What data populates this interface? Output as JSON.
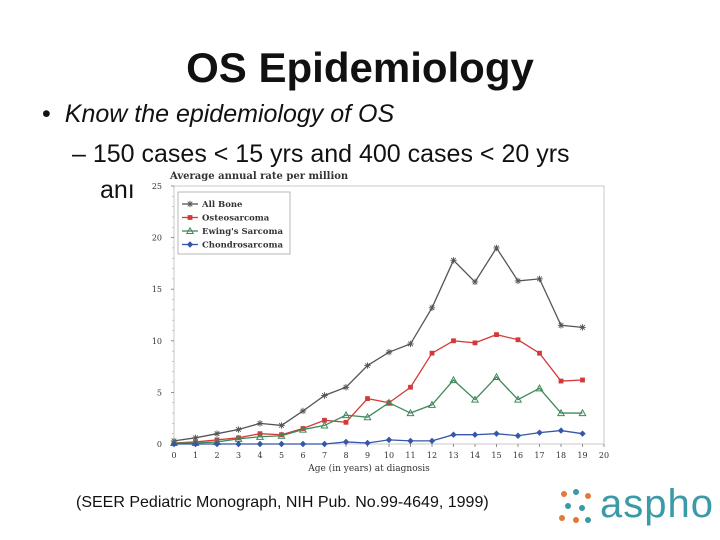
{
  "slide": {
    "title": "OS Epidemiology",
    "bullet": "Know the epidemiology of OS",
    "sub_bullet_line1": "– 150 cases < 15 yrs and 400 cases < 20 yrs",
    "sub_bullet_line2_visible": "anı",
    "citation": "(SEER Pediatric Monograph, NIH Pub. No.99-4649, 1999)",
    "logo_text": "aspho",
    "logo_color": "#3a9aa8"
  },
  "chart_data": {
    "type": "line",
    "title": "Average annual rate per million",
    "xlabel": "Age (in years) at diagnosis",
    "ylabel": "",
    "x": [
      0,
      1,
      2,
      3,
      4,
      5,
      6,
      7,
      8,
      9,
      10,
      11,
      12,
      13,
      14,
      15,
      16,
      17,
      18,
      19
    ],
    "xticks": [
      "0",
      "1",
      "2",
      "3",
      "4",
      "5",
      "6",
      "7",
      "8",
      "9",
      "10",
      "11",
      "12",
      "13",
      "14",
      "15",
      "16",
      "17",
      "18",
      "19",
      "20"
    ],
    "yticks": [
      "0",
      "5",
      "10",
      "15",
      "20",
      "25"
    ],
    "xlim": [
      0,
      20
    ],
    "ylim": [
      0,
      25
    ],
    "legend_position": "top-left",
    "grid": false,
    "series": [
      {
        "name": "All Bone",
        "color": "#555555",
        "marker": "star",
        "values": [
          0.3,
          0.6,
          1.0,
          1.4,
          2.0,
          1.8,
          3.2,
          4.7,
          5.5,
          7.6,
          8.9,
          9.7,
          13.2,
          17.8,
          15.7,
          19.0,
          15.8,
          16.0,
          11.5,
          11.3
        ]
      },
      {
        "name": "Osteosarcoma",
        "color": "#d23a3a",
        "marker": "square",
        "values": [
          0.1,
          0.2,
          0.4,
          0.6,
          1.0,
          0.9,
          1.5,
          2.3,
          2.1,
          4.4,
          4.0,
          5.5,
          8.8,
          10.0,
          9.8,
          10.6,
          10.1,
          8.8,
          6.1,
          6.2
        ]
      },
      {
        "name": "Ewing's Sarcoma",
        "color": "#3f8a5a",
        "marker": "triangle",
        "values": [
          0.1,
          0.1,
          0.2,
          0.5,
          0.7,
          0.8,
          1.4,
          1.8,
          2.8,
          2.6,
          4.0,
          3.0,
          3.8,
          6.2,
          4.3,
          6.5,
          4.3,
          5.4,
          3.0,
          3.0
        ]
      },
      {
        "name": "Chondrosarcoma",
        "color": "#3557a8",
        "marker": "diamond",
        "values": [
          0,
          0,
          0,
          0,
          0,
          0,
          0,
          0,
          0.2,
          0.1,
          0.4,
          0.3,
          0.3,
          0.9,
          0.9,
          1.0,
          0.8,
          1.1,
          1.3,
          1.0
        ]
      }
    ]
  }
}
